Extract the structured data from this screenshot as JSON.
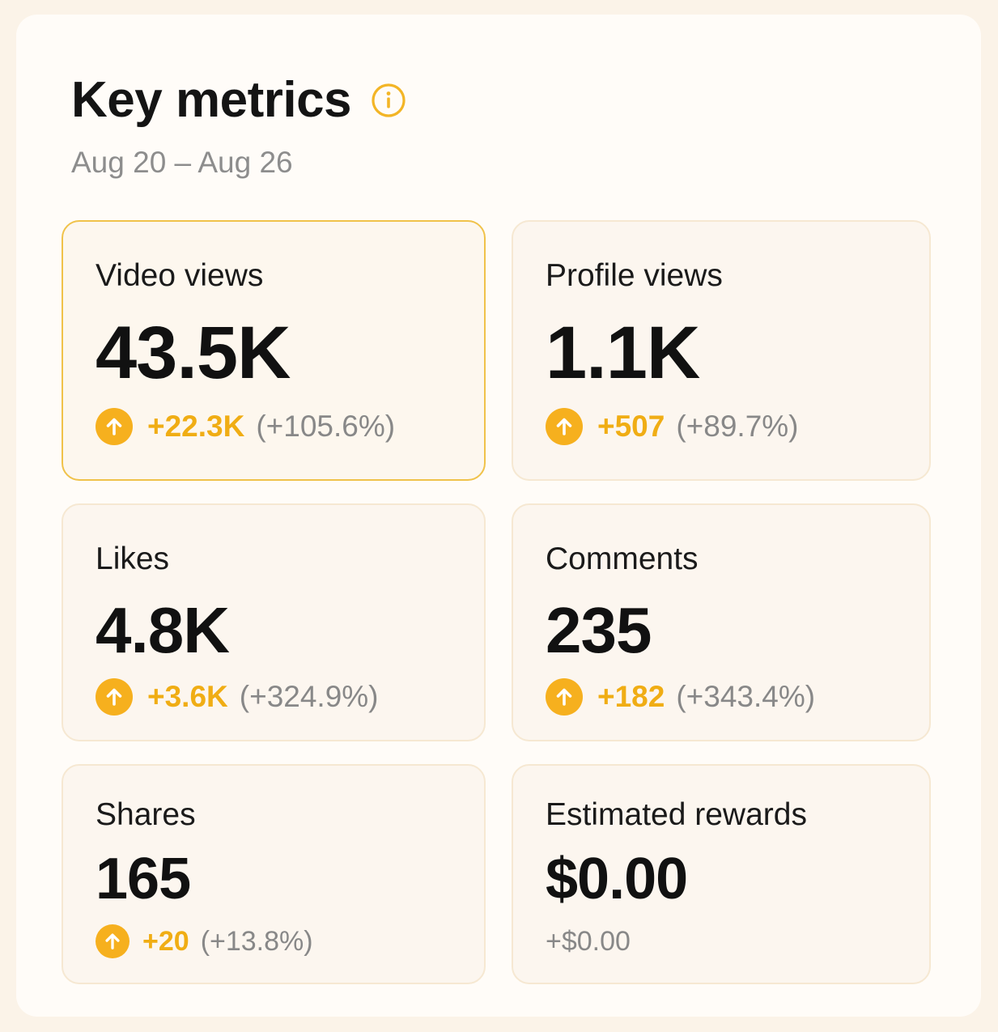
{
  "header": {
    "title": "Key metrics",
    "date_range": "Aug 20 – Aug 26"
  },
  "colors": {
    "accent": "#f6b01e",
    "delta_text": "#f0ad14",
    "active_border": "#f0c24a"
  },
  "metrics": [
    {
      "label": "Video views",
      "value": "43.5K",
      "delta": "+22.3K",
      "pct": "(+105.6%)",
      "icon": "arrow-up-circle-icon",
      "selected": true
    },
    {
      "label": "Profile views",
      "value": "1.1K",
      "delta": "+507",
      "pct": "(+89.7%)",
      "icon": "arrow-up-circle-icon",
      "selected": false
    },
    {
      "label": "Likes",
      "value": "4.8K",
      "delta": "+3.6K",
      "pct": "(+324.9%)",
      "icon": "arrow-up-circle-icon",
      "selected": false
    },
    {
      "label": "Comments",
      "value": "235",
      "delta": "+182",
      "pct": "(+343.4%)",
      "icon": "arrow-up-circle-icon",
      "selected": false
    },
    {
      "label": "Shares",
      "value": "165",
      "delta": "+20",
      "pct": "(+13.8%)",
      "icon": "arrow-up-circle-icon",
      "selected": false
    },
    {
      "label": "Estimated rewards",
      "value": "$0.00",
      "change": "+$0.00",
      "selected": false
    }
  ]
}
